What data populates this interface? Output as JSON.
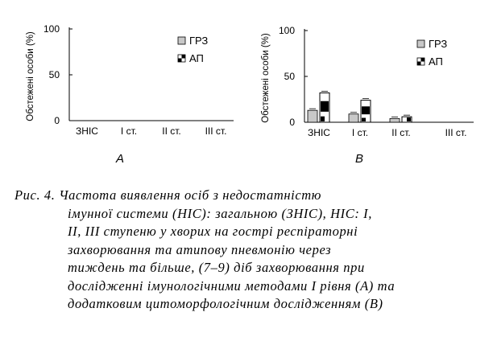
{
  "chart_data": [
    {
      "type": "bar",
      "panel_label": "A",
      "ylabel": "Обстежені особи  (%)",
      "ylim": [
        0,
        100
      ],
      "yticks": [
        "0",
        "50",
        "100"
      ],
      "categories": [
        "ЗНІС",
        "І ст.",
        "ІІ ст.",
        "ІІІ ст."
      ],
      "series": [
        {
          "name": "ГРЗ",
          "values": [
            0,
            0,
            0,
            0
          ],
          "color": "#c8c8c8"
        },
        {
          "name": "АП",
          "values": [
            0,
            0,
            0,
            0
          ],
          "color": "#000000"
        }
      ],
      "legend_position": "top-right",
      "grid": false
    },
    {
      "type": "bar",
      "panel_label": "B",
      "ylabel": "Обстежені особи  (%)",
      "ylim": [
        0,
        100
      ],
      "yticks": [
        "0",
        "50",
        "100"
      ],
      "categories": [
        "ЗНІС",
        "І ст.",
        "ІІ ст.",
        "ІІІ ст."
      ],
      "series": [
        {
          "name": "ГРЗ",
          "values": [
            13,
            9,
            4,
            0
          ],
          "color": "#c8c8c8"
        },
        {
          "name": "АП",
          "values": [
            32,
            24,
            6,
            0
          ],
          "color": "#000000"
        }
      ],
      "legend_position": "top-right",
      "grid": false
    }
  ],
  "caption": {
    "lines": [
      "Рис. 4. Частота виявлення осіб з недостатністю",
      "імунної системи (НІС): загальною (ЗНІС), НІС: І,",
      "ІІ, ІІІ ступеню у хворих на гострі респіраторні",
      "захворювання та атипову пневмонію через",
      "тиждень та більше, (7–9) діб захворювання при",
      "дослідженні імунологічними методами І рівня (А) та",
      "додатковим цитоморфологічним дослідженням (В)"
    ]
  }
}
